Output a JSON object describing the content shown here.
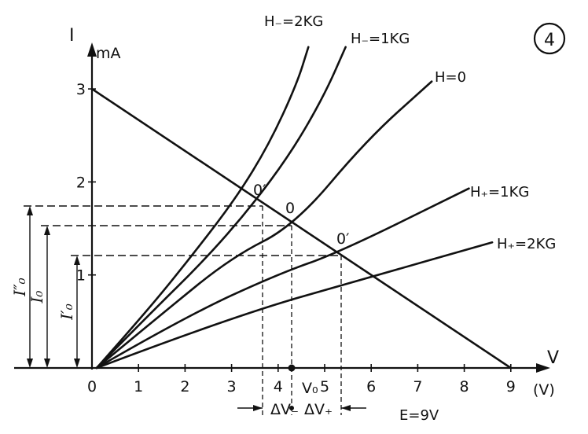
{
  "chart_data": {
    "type": "line",
    "figure_label": "④",
    "y_axis": {
      "name": "I",
      "unit": "mA",
      "ticks": [
        "1",
        "2",
        "3"
      ],
      "range": [
        0,
        3
      ]
    },
    "x_axis": {
      "name": "V",
      "unit": "(V)",
      "ticks": [
        "0",
        "1",
        "2",
        "3",
        "4",
        "5",
        "6",
        "7",
        "8",
        "9"
      ],
      "range": [
        0,
        9
      ]
    },
    "series": [
      {
        "name": "H₋=2KG",
        "points": [
          [
            0.1,
            0
          ],
          [
            1,
            0.55
          ],
          [
            2,
            1.12
          ],
          [
            3,
            1.73
          ],
          [
            3.8,
            1.75
          ],
          [
            4.5,
            2.73
          ],
          [
            5.1,
            3.39
          ]
        ]
      },
      {
        "name": "H₋=1KG",
        "points": [
          [
            0.1,
            0
          ],
          [
            1,
            0.48
          ],
          [
            2,
            0.98
          ],
          [
            3,
            1.49
          ],
          [
            4.35,
            1.55
          ],
          [
            5.5,
            3.39
          ]
        ]
      },
      {
        "name": "H=0",
        "points": [
          [
            0.1,
            0
          ],
          [
            1,
            0.35
          ],
          [
            2,
            0.72
          ],
          [
            3,
            1.09
          ],
          [
            4.35,
            1.53
          ],
          [
            7.3,
            3.05
          ]
        ]
      },
      {
        "name": "H₊=1KG",
        "points": [
          [
            0.1,
            0
          ],
          [
            2,
            0.5
          ],
          [
            4,
            0.96
          ],
          [
            5.3,
            1.22
          ],
          [
            8.1,
            1.93
          ]
        ]
      },
      {
        "name": "H₊=2KG",
        "points": [
          [
            0.1,
            0
          ],
          [
            3,
            0.47
          ],
          [
            6,
            0.96
          ],
          [
            8.6,
            1.36
          ]
        ]
      }
    ],
    "load_line": {
      "points": [
        [
          0,
          3
        ],
        [
          9,
          0
        ]
      ],
      "source": "E=9V"
    },
    "operating_points": [
      {
        "label": "0″",
        "x": 3.8,
        "y": 1.75
      },
      {
        "label": "0",
        "x": 4.35,
        "y": 1.55
      },
      {
        "label": "0′",
        "x": 5.3,
        "y": 1.22
      }
    ],
    "current_labels": [
      "I″₀",
      "I₀",
      "I′₀"
    ],
    "voltage_labels": {
      "v0": "V₀",
      "dv_minus": "ΔV₋",
      "dv_plus": "ΔV₊"
    },
    "source_label": "E=9V",
    "colors": {
      "ink": "#111111",
      "background": "#ffffff"
    }
  }
}
